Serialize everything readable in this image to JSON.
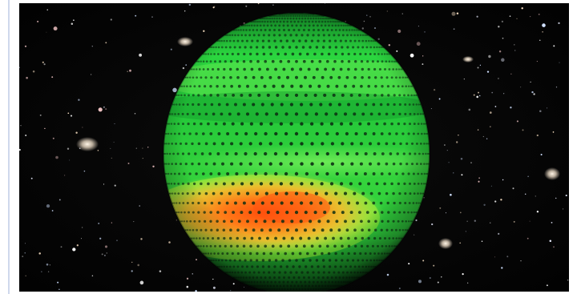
{
  "image": {
    "subject": "planet-sphere-over-starfield",
    "colors": {
      "space": "#050505",
      "planet_green_light": "#5fe85a",
      "planet_green": "#24c83a",
      "planet_green_dark": "#0e8b24",
      "hotspot_orange": "#ff6a12",
      "hotspot_yellow": "#ffd22e",
      "frame_rule": "#cfd8ec",
      "dots": "#0b2d12"
    }
  }
}
